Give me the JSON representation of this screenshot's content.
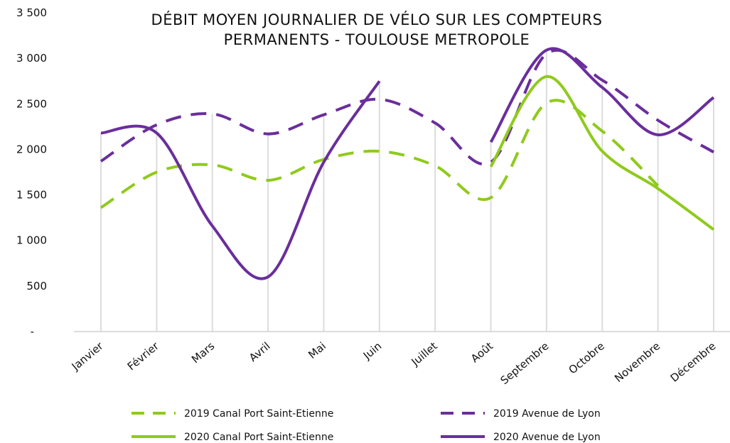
{
  "chart_data": {
    "type": "line",
    "title": "DÉBIT MOYEN JOURNALIER DE VÉLO SUR LES COMPTEURS PERMANENTS - TOULOUSE METROPOLE",
    "categories": [
      "Janvier",
      "Février",
      "Mars",
      "Avril",
      "Mai",
      "Juin",
      "Juillet",
      "Août",
      "Septembre",
      "Octobre",
      "Novembre",
      "Décembre"
    ],
    "series": [
      {
        "name": "2019 Canal Port Saint-Etienne",
        "color": "#8fca1c",
        "dashed": true,
        "values": [
          1360,
          1750,
          1830,
          1660,
          1890,
          1980,
          1820,
          1470,
          2510,
          2200,
          1600,
          null
        ]
      },
      {
        "name": "2019 Avenue de Lyon",
        "color": "#6a2e9c",
        "dashed": true,
        "values": [
          1870,
          2270,
          2390,
          2170,
          2380,
          2550,
          2290,
          1860,
          3050,
          2760,
          2320,
          1970
        ]
      },
      {
        "name": "2020 Canal Port Saint-Etienne",
        "color": "#8fca1c",
        "dashed": false,
        "values": [
          null,
          null,
          null,
          null,
          null,
          null,
          null,
          1810,
          2800,
          1980,
          1570,
          1120
        ]
      },
      {
        "name": "2020 Avenue de Lyon",
        "color": "#6a2e9c",
        "dashed": false,
        "values": [
          2180,
          2180,
          1160,
          600,
          1860,
          2750,
          null,
          2080,
          3090,
          2680,
          2160,
          2570
        ]
      }
    ],
    "ylim": [
      0,
      3500
    ],
    "yticks": [
      {
        "value": 0,
        "label": "-"
      },
      500,
      {
        "value": 1000,
        "label": "1 000"
      },
      {
        "value": 1500,
        "label": "1 500"
      },
      {
        "value": 2000,
        "label": "2 000"
      },
      {
        "value": 2500,
        "label": "2 500"
      },
      {
        "value": 3000,
        "label": "3 000"
      },
      {
        "value": 3500,
        "label": "3 500"
      }
    ]
  }
}
